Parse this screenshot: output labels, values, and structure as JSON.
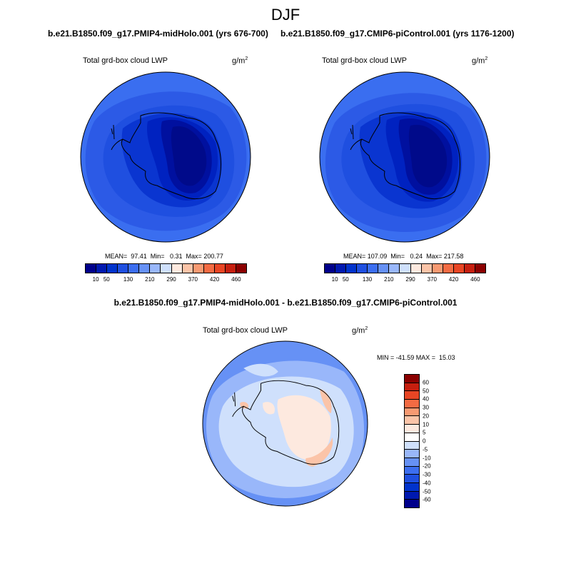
{
  "figure": {
    "title": "DJF",
    "left_case": "b.e21.B1850.f09_g17.PMIP4-midHolo.001 (yrs 676-700)",
    "right_case": "b.e21.B1850.f09_g17.CMIP6-piControl.001 (yrs 1176-1200)",
    "diff_title": "b.e21.B1850.f09_g17.PMIP4-midHolo.001 - b.e21.B1850.f09_g17.CMIP6-piControl.001"
  },
  "panels": {
    "left": {
      "var_label": "Total grd-box cloud LWP",
      "unit": "g/m",
      "unit_sup": "2",
      "stats": "MEAN=  97.41  Min=   0.31  Max= 200.77"
    },
    "right": {
      "var_label": "Total grd-box cloud LWP",
      "unit": "g/m",
      "unit_sup": "2",
      "stats": "MEAN= 107.09  Min=   0.24  Max= 217.58"
    },
    "diff": {
      "var_label": "Total grd-box cloud LWP",
      "unit": "g/m",
      "unit_sup": "2",
      "stats": "MIN = -41.59 MAX =  15.03"
    }
  },
  "colorbars": {
    "abs_ticks": [
      "10",
      "50",
      "130",
      "210",
      "290",
      "370",
      "420",
      "460"
    ],
    "abs_colors": [
      "#00008b",
      "#0019b0",
      "#0033cc",
      "#1f4fe0",
      "#3c6ef0",
      "#6691f5",
      "#99b7fa",
      "#cfe0fc",
      "#fde9df",
      "#fbc4a8",
      "#f89a72",
      "#f36b43",
      "#e84524",
      "#c61f0f",
      "#8b0000"
    ],
    "diff_ticks": [
      "60",
      "50",
      "40",
      "30",
      "20",
      "10",
      "5",
      "0",
      "-5",
      "-10",
      "-20",
      "-30",
      "-40",
      "-50",
      "-60"
    ],
    "diff_colors": [
      "#8b0000",
      "#c61f0f",
      "#e84524",
      "#f36b43",
      "#f89a72",
      "#fbc4a8",
      "#fde9df",
      "#ffffff",
      "#cfe0fc",
      "#99b7fa",
      "#6691f5",
      "#3c6ef0",
      "#1f4fe0",
      "#0033cc",
      "#0019b0",
      "#00008b"
    ]
  },
  "map_colors": {
    "abs_ocean_outer": "#3a6ef0",
    "abs_ocean_mid": "#2c5ae6",
    "abs_ocean_dark": "#1f4fe0",
    "abs_coast": "#0a35d0",
    "abs_interior1": "#0022c0",
    "abs_interior2": "#00109f",
    "abs_interior3": "#000a8a",
    "diff_outer": "#6691f5",
    "diff_mid": "#99b7fa",
    "diff_light": "#cfe0fc",
    "diff_pos": "#fde9df",
    "diff_pos2": "#fbc4a8"
  }
}
